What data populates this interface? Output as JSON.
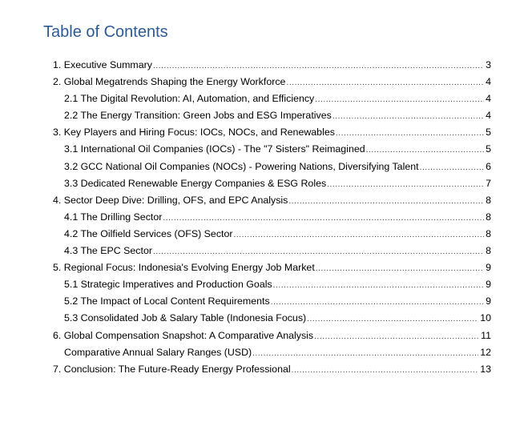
{
  "title": "Table of Contents",
  "entries": [
    {
      "level": 1,
      "label": "1. Executive Summary",
      "page": "3"
    },
    {
      "level": 1,
      "label": "2. Global Megatrends Shaping the Energy Workforce",
      "page": "4"
    },
    {
      "level": 2,
      "label": "2.1 The Digital Revolution: AI, Automation, and Efficiency",
      "page": "4"
    },
    {
      "level": 2,
      "label": "2.2 The Energy Transition: Green Jobs and ESG Imperatives",
      "page": "4"
    },
    {
      "level": 1,
      "label": "3. Key Players and Hiring Focus: IOCs, NOCs, and Renewables",
      "page": "5"
    },
    {
      "level": 2,
      "label": "3.1 International Oil Companies (IOCs) - The \"7 Sisters\" Reimagined",
      "page": "5"
    },
    {
      "level": 2,
      "label": "3.2 GCC National Oil Companies (NOCs) - Powering Nations, Diversifying Talent",
      "page": "6"
    },
    {
      "level": 2,
      "label": "3.3 Dedicated Renewable Energy Companies & ESG Roles",
      "page": "7"
    },
    {
      "level": 1,
      "label": "4. Sector Deep Dive: Drilling, OFS, and EPC Analysis",
      "page": "8"
    },
    {
      "level": 2,
      "label": "4.1 The Drilling Sector",
      "page": "8"
    },
    {
      "level": 2,
      "label": "4.2 The Oilfield Services (OFS) Sector",
      "page": "8"
    },
    {
      "level": 2,
      "label": "4.3 The EPC Sector",
      "page": "8"
    },
    {
      "level": 1,
      "label": "5. Regional Focus: Indonesia's Evolving Energy Job Market",
      "page": "9"
    },
    {
      "level": 2,
      "label": "5.1 Strategic Imperatives and Production Goals",
      "page": "9"
    },
    {
      "level": 2,
      "label": "5.2 The Impact of Local Content Requirements",
      "page": "9"
    },
    {
      "level": 2,
      "label": "5.3 Consolidated Job & Salary Table (Indonesia Focus)",
      "page": "10"
    },
    {
      "level": 1,
      "label": "6. Global Compensation Snapshot: A Comparative Analysis",
      "page": "11"
    },
    {
      "level": 2,
      "label": "Comparative Annual Salary Ranges (USD)",
      "page": "12"
    },
    {
      "level": 1,
      "label": "7. Conclusion: The Future-Ready Energy Professional",
      "page": "13"
    }
  ]
}
